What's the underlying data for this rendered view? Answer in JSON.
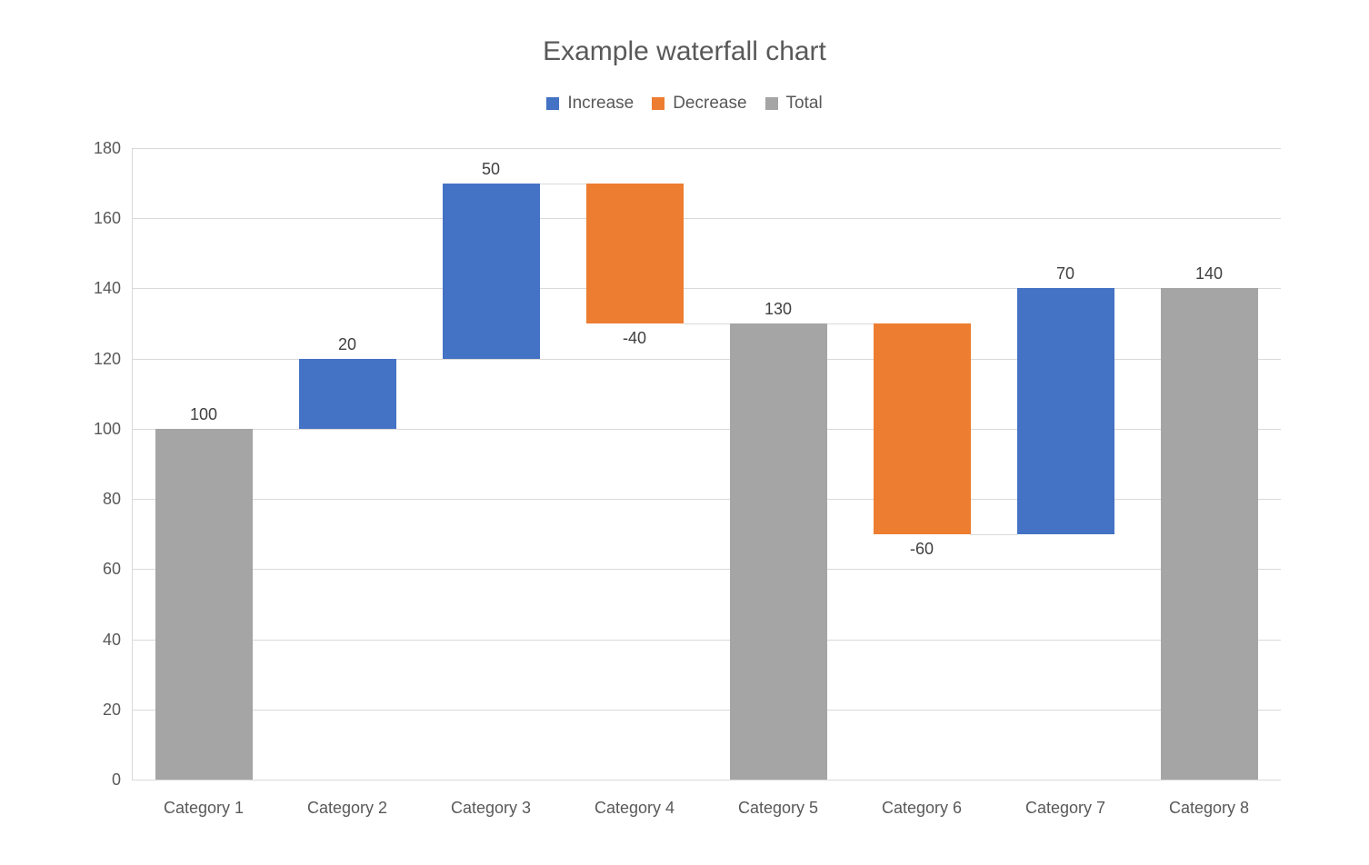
{
  "chart_data": {
    "type": "bar",
    "subtype": "waterfall",
    "title": "Example waterfall chart",
    "xlabel": "",
    "ylabel": "",
    "ylim": [
      0,
      180
    ],
    "yticks": [
      0,
      20,
      40,
      60,
      80,
      100,
      120,
      140,
      160,
      180
    ],
    "grid": true,
    "legend_position": "top",
    "legend": [
      {
        "label": "Increase",
        "type": "increase",
        "color": "#4472C4"
      },
      {
        "label": "Decrease",
        "type": "decrease",
        "color": "#ED7D31"
      },
      {
        "label": "Total",
        "type": "total",
        "color": "#A5A5A5"
      }
    ],
    "categories": [
      "Category 1",
      "Category 2",
      "Category 3",
      "Category 4",
      "Category 5",
      "Category 6",
      "Category 7",
      "Category 8"
    ],
    "bars": [
      {
        "category": "Category 1",
        "type": "total",
        "value": 100,
        "from": 0,
        "to": 100,
        "label": "100"
      },
      {
        "category": "Category 2",
        "type": "increase",
        "value": 20,
        "from": 100,
        "to": 120,
        "label": "20"
      },
      {
        "category": "Category 3",
        "type": "increase",
        "value": 50,
        "from": 120,
        "to": 170,
        "label": "50"
      },
      {
        "category": "Category 4",
        "type": "decrease",
        "value": -40,
        "from": 170,
        "to": 130,
        "label": "-40"
      },
      {
        "category": "Category 5",
        "type": "total",
        "value": 130,
        "from": 0,
        "to": 130,
        "label": "130"
      },
      {
        "category": "Category 6",
        "type": "decrease",
        "value": -60,
        "from": 130,
        "to": 70,
        "label": "-60"
      },
      {
        "category": "Category 7",
        "type": "increase",
        "value": 70,
        "from": 70,
        "to": 140,
        "label": "70"
      },
      {
        "category": "Category 8",
        "type": "total",
        "value": 140,
        "from": 0,
        "to": 140,
        "label": "140"
      }
    ],
    "colors": {
      "increase": "#4472C4",
      "decrease": "#ED7D31",
      "total": "#A5A5A5",
      "gridline": "#D9D9D9",
      "axis_line": "#D9D9D9",
      "connector": "#D9D9D9",
      "title_text": "#595959",
      "tick_text": "#595959",
      "data_label_text": "#404040"
    }
  }
}
